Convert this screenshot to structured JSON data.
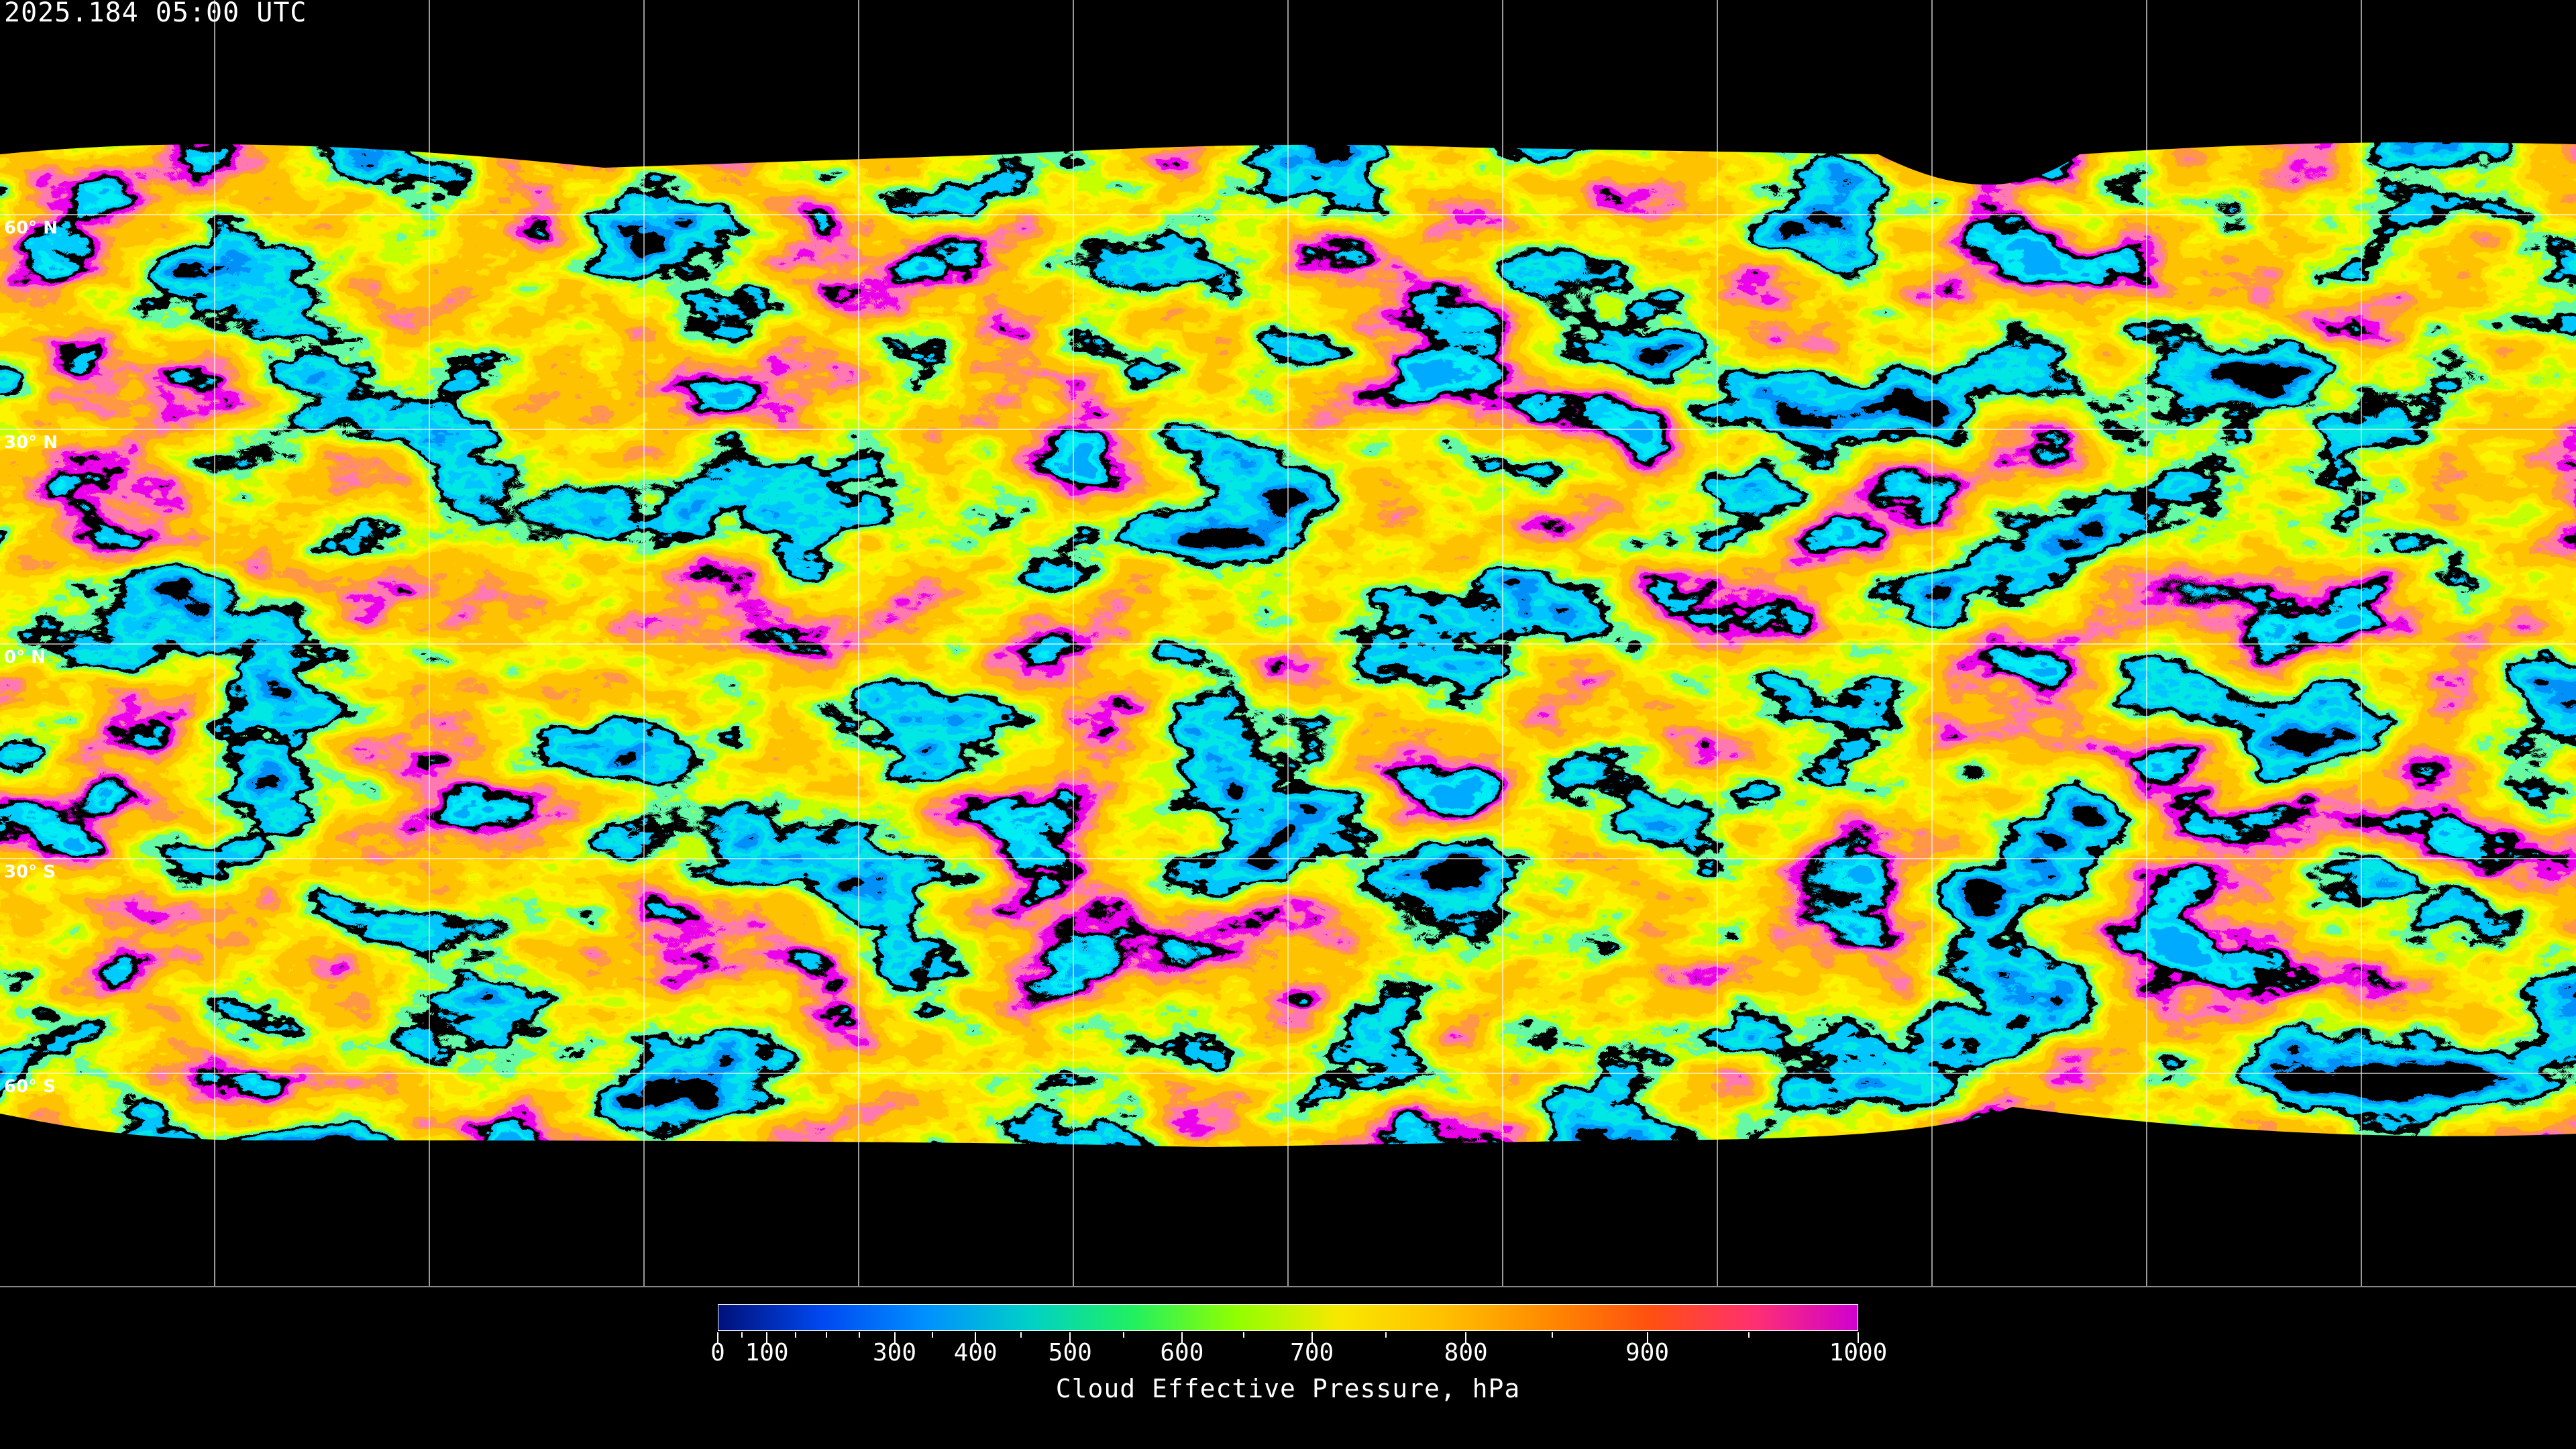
{
  "header": {
    "timestamp": "2025.184 05:00 UTC"
  },
  "map": {
    "projection": "equirectangular",
    "graticule_spacing_deg": 30,
    "latitude_labels": [
      "60° N",
      "30° N",
      "0° N",
      "30° S",
      "60° S"
    ],
    "no_data_color": "#000000",
    "graticule_color": "#ffffff",
    "coastline_color": "#ffffff"
  },
  "colorbar": {
    "title": "Cloud Effective Pressure, hPa",
    "min": 0,
    "max": 1000,
    "labels": [
      "0",
      "100",
      "300",
      "400",
      "500",
      "600",
      "700",
      "800",
      "900",
      "1000"
    ],
    "minor_ticks": [
      50,
      150,
      200,
      250,
      350,
      450,
      550,
      650,
      750,
      850,
      950
    ],
    "colors": [
      "#00107a",
      "#0048f0",
      "#0090ff",
      "#00d0c8",
      "#20f060",
      "#90ff00",
      "#f8e800",
      "#ffc000",
      "#ff8a00",
      "#ff5010",
      "#ff3070",
      "#d000d0"
    ]
  }
}
